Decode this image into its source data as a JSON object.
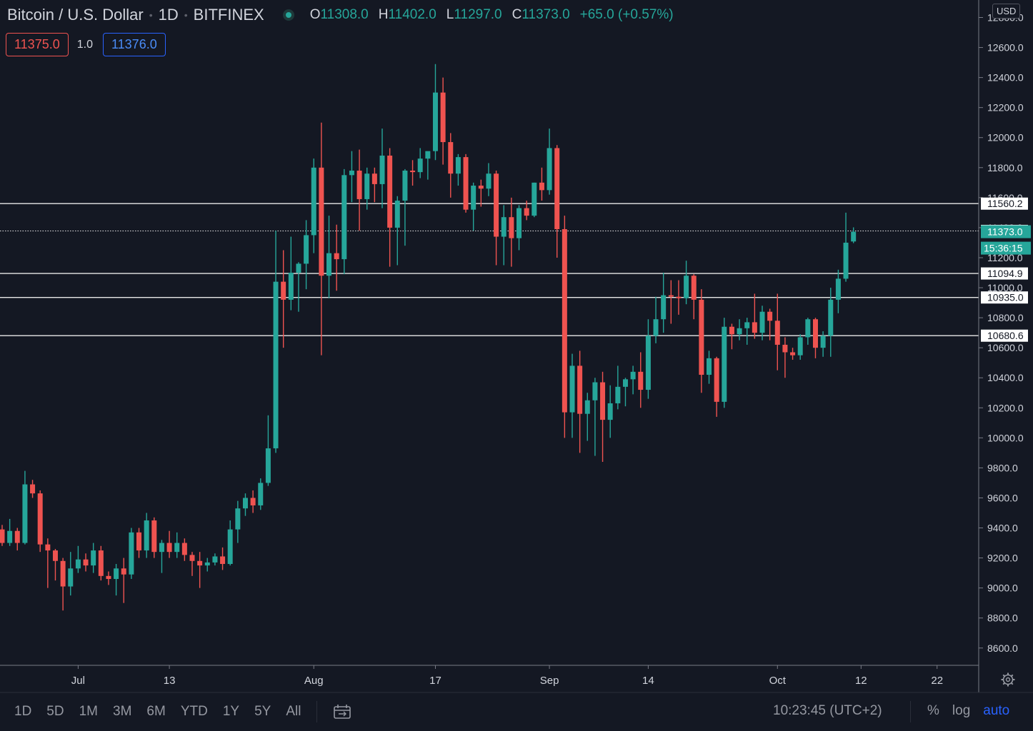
{
  "header": {
    "symbol": "Bitcoin / U.S. Dollar",
    "interval": "1D",
    "exchange": "BITFINEX",
    "ohlc": [
      {
        "label": "O",
        "value": "11308.0"
      },
      {
        "label": "H",
        "value": "11402.0"
      },
      {
        "label": "L",
        "value": "11297.0"
      },
      {
        "label": "C",
        "value": "11373.0"
      }
    ],
    "change": "+65.0 (+0.57%)"
  },
  "quote": {
    "sell": "11375.0",
    "spread": "1.0",
    "buy": "11376.0"
  },
  "currency": "USD",
  "colors": {
    "up": "#26a69a",
    "down": "#ef5350",
    "background": "#141823",
    "accent": "#2962ff",
    "text": "#d1d4dc"
  },
  "chart_data": {
    "type": "candlestick",
    "ylim": [
      8450,
      12850
    ],
    "y_ticks": [
      8600,
      8800,
      9000,
      9200,
      9400,
      9600,
      9800,
      10000,
      10200,
      10400,
      10600,
      10800,
      11000,
      11200,
      11400,
      11600,
      11800,
      12000,
      12200,
      12400,
      12600,
      12800
    ],
    "y_tick_labels": [
      "8600.0",
      "8800.0",
      "9000.0",
      "9200.0",
      "9400.0",
      "9600.0",
      "9800.0",
      "10000.0",
      "10200.0",
      "10400.0",
      "10600.0",
      "10800.0",
      "11000.0",
      "11200.0",
      "11400.0",
      "11600.0",
      "11800.0",
      "12000.0",
      "12200.0",
      "12400.0",
      "12600.0",
      "12800.0"
    ],
    "x_start": "2020-06-21",
    "x_labels": [
      {
        "date": "2020-07-01",
        "label": "Jul"
      },
      {
        "date": "2020-07-13",
        "label": "13"
      },
      {
        "date": "2020-08-01",
        "label": "Aug"
      },
      {
        "date": "2020-08-17",
        "label": "17"
      },
      {
        "date": "2020-09-01",
        "label": "Sep"
      },
      {
        "date": "2020-09-14",
        "label": "14"
      },
      {
        "date": "2020-10-01",
        "label": "Oct"
      },
      {
        "date": "2020-10-12",
        "label": "12"
      },
      {
        "date": "2020-10-22",
        "label": "22"
      }
    ],
    "candles": [
      {
        "date": "2020-06-21",
        "o": 9390,
        "h": 9420,
        "l": 9280,
        "c": 9300
      },
      {
        "date": "2020-06-22",
        "o": 9300,
        "h": 9460,
        "l": 9280,
        "c": 9380
      },
      {
        "date": "2020-06-23",
        "o": 9380,
        "h": 9400,
        "l": 9250,
        "c": 9300
      },
      {
        "date": "2020-06-24",
        "o": 9300,
        "h": 9780,
        "l": 9290,
        "c": 9690
      },
      {
        "date": "2020-06-25",
        "o": 9690,
        "h": 9720,
        "l": 9600,
        "c": 9630
      },
      {
        "date": "2020-06-26",
        "o": 9630,
        "h": 9650,
        "l": 9240,
        "c": 9290
      },
      {
        "date": "2020-06-27",
        "o": 9290,
        "h": 9330,
        "l": 9000,
        "c": 9250
      },
      {
        "date": "2020-06-28",
        "o": 9250,
        "h": 9260,
        "l": 9050,
        "c": 9180
      },
      {
        "date": "2020-06-29",
        "o": 9180,
        "h": 9200,
        "l": 8850,
        "c": 9010
      },
      {
        "date": "2020-06-30",
        "o": 9010,
        "h": 9240,
        "l": 8950,
        "c": 9130
      },
      {
        "date": "2020-07-01",
        "o": 9130,
        "h": 9280,
        "l": 9100,
        "c": 9190
      },
      {
        "date": "2020-07-02",
        "o": 9190,
        "h": 9230,
        "l": 9110,
        "c": 9150
      },
      {
        "date": "2020-07-03",
        "o": 9150,
        "h": 9300,
        "l": 9100,
        "c": 9250
      },
      {
        "date": "2020-07-04",
        "o": 9250,
        "h": 9280,
        "l": 9050,
        "c": 9080
      },
      {
        "date": "2020-07-05",
        "o": 9080,
        "h": 9110,
        "l": 9020,
        "c": 9060
      },
      {
        "date": "2020-07-06",
        "o": 9060,
        "h": 9160,
        "l": 8950,
        "c": 9130
      },
      {
        "date": "2020-07-07",
        "o": 9130,
        "h": 9200,
        "l": 8900,
        "c": 9090
      },
      {
        "date": "2020-07-08",
        "o": 9090,
        "h": 9400,
        "l": 9060,
        "c": 9370
      },
      {
        "date": "2020-07-09",
        "o": 9370,
        "h": 9400,
        "l": 9200,
        "c": 9250
      },
      {
        "date": "2020-07-10",
        "o": 9250,
        "h": 9500,
        "l": 9200,
        "c": 9450
      },
      {
        "date": "2020-07-11",
        "o": 9450,
        "h": 9470,
        "l": 9200,
        "c": 9240
      },
      {
        "date": "2020-07-12",
        "o": 9240,
        "h": 9320,
        "l": 9100,
        "c": 9300
      },
      {
        "date": "2020-07-13",
        "o": 9300,
        "h": 9380,
        "l": 9200,
        "c": 9240
      },
      {
        "date": "2020-07-14",
        "o": 9240,
        "h": 9370,
        "l": 9200,
        "c": 9300
      },
      {
        "date": "2020-07-15",
        "o": 9300,
        "h": 9330,
        "l": 9180,
        "c": 9220
      },
      {
        "date": "2020-07-16",
        "o": 9220,
        "h": 9240,
        "l": 9080,
        "c": 9180
      },
      {
        "date": "2020-07-17",
        "o": 9180,
        "h": 9240,
        "l": 9000,
        "c": 9150
      },
      {
        "date": "2020-07-18",
        "o": 9150,
        "h": 9200,
        "l": 9110,
        "c": 9170
      },
      {
        "date": "2020-07-19",
        "o": 9170,
        "h": 9230,
        "l": 9150,
        "c": 9210
      },
      {
        "date": "2020-07-20",
        "o": 9210,
        "h": 9270,
        "l": 9120,
        "c": 9160
      },
      {
        "date": "2020-07-21",
        "o": 9160,
        "h": 9450,
        "l": 9150,
        "c": 9390
      },
      {
        "date": "2020-07-22",
        "o": 9390,
        "h": 9580,
        "l": 9300,
        "c": 9530
      },
      {
        "date": "2020-07-23",
        "o": 9530,
        "h": 9630,
        "l": 9480,
        "c": 9600
      },
      {
        "date": "2020-07-24",
        "o": 9600,
        "h": 9650,
        "l": 9500,
        "c": 9550
      },
      {
        "date": "2020-07-25",
        "o": 9550,
        "h": 9730,
        "l": 9520,
        "c": 9700
      },
      {
        "date": "2020-07-26",
        "o": 9700,
        "h": 10150,
        "l": 9680,
        "c": 9930
      },
      {
        "date": "2020-07-27",
        "o": 9930,
        "h": 11380,
        "l": 9900,
        "c": 11040
      },
      {
        "date": "2020-07-28",
        "o": 11040,
        "h": 11250,
        "l": 10600,
        "c": 10920
      },
      {
        "date": "2020-07-29",
        "o": 10920,
        "h": 11340,
        "l": 10850,
        "c": 11100
      },
      {
        "date": "2020-07-30",
        "o": 11100,
        "h": 11170,
        "l": 10840,
        "c": 11160
      },
      {
        "date": "2020-07-31",
        "o": 11160,
        "h": 11450,
        "l": 10990,
        "c": 11350
      },
      {
        "date": "2020-08-01",
        "o": 11350,
        "h": 11860,
        "l": 11230,
        "c": 11800
      },
      {
        "date": "2020-08-02",
        "o": 11800,
        "h": 12100,
        "l": 10550,
        "c": 11080
      },
      {
        "date": "2020-08-03",
        "o": 11080,
        "h": 11480,
        "l": 10930,
        "c": 11230
      },
      {
        "date": "2020-08-04",
        "o": 11230,
        "h": 11420,
        "l": 10980,
        "c": 11190
      },
      {
        "date": "2020-08-05",
        "o": 11190,
        "h": 11790,
        "l": 11090,
        "c": 11750
      },
      {
        "date": "2020-08-06",
        "o": 11750,
        "h": 11910,
        "l": 11570,
        "c": 11780
      },
      {
        "date": "2020-08-07",
        "o": 11780,
        "h": 11920,
        "l": 11380,
        "c": 11590
      },
      {
        "date": "2020-08-08",
        "o": 11590,
        "h": 11800,
        "l": 11520,
        "c": 11760
      },
      {
        "date": "2020-08-09",
        "o": 11760,
        "h": 11800,
        "l": 11570,
        "c": 11690
      },
      {
        "date": "2020-08-10",
        "o": 11690,
        "h": 12060,
        "l": 11530,
        "c": 11880
      },
      {
        "date": "2020-08-11",
        "o": 11880,
        "h": 11930,
        "l": 11140,
        "c": 11400
      },
      {
        "date": "2020-08-12",
        "o": 11400,
        "h": 11610,
        "l": 11150,
        "c": 11580
      },
      {
        "date": "2020-08-13",
        "o": 11580,
        "h": 11790,
        "l": 11280,
        "c": 11780
      },
      {
        "date": "2020-08-14",
        "o": 11780,
        "h": 11850,
        "l": 11680,
        "c": 11770
      },
      {
        "date": "2020-08-15",
        "o": 11770,
        "h": 11930,
        "l": 11730,
        "c": 11860
      },
      {
        "date": "2020-08-16",
        "o": 11860,
        "h": 11900,
        "l": 11720,
        "c": 11910
      },
      {
        "date": "2020-08-17",
        "o": 11910,
        "h": 12490,
        "l": 11850,
        "c": 12300
      },
      {
        "date": "2020-08-18",
        "o": 12300,
        "h": 12400,
        "l": 11820,
        "c": 11970
      },
      {
        "date": "2020-08-19",
        "o": 11970,
        "h": 12030,
        "l": 11600,
        "c": 11760
      },
      {
        "date": "2020-08-20",
        "o": 11760,
        "h": 11890,
        "l": 11680,
        "c": 11870
      },
      {
        "date": "2020-08-21",
        "o": 11870,
        "h": 11890,
        "l": 11500,
        "c": 11520
      },
      {
        "date": "2020-08-22",
        "o": 11520,
        "h": 11700,
        "l": 11380,
        "c": 11680
      },
      {
        "date": "2020-08-23",
        "o": 11680,
        "h": 11720,
        "l": 11540,
        "c": 11660
      },
      {
        "date": "2020-08-24",
        "o": 11660,
        "h": 11830,
        "l": 11610,
        "c": 11760
      },
      {
        "date": "2020-08-25",
        "o": 11760,
        "h": 11780,
        "l": 11150,
        "c": 11340
      },
      {
        "date": "2020-08-26",
        "o": 11340,
        "h": 11550,
        "l": 11150,
        "c": 11470
      },
      {
        "date": "2020-08-27",
        "o": 11470,
        "h": 11600,
        "l": 11140,
        "c": 11330
      },
      {
        "date": "2020-08-28",
        "o": 11330,
        "h": 11550,
        "l": 11250,
        "c": 11530
      },
      {
        "date": "2020-08-29",
        "o": 11530,
        "h": 11580,
        "l": 11450,
        "c": 11480
      },
      {
        "date": "2020-08-30",
        "o": 11480,
        "h": 11700,
        "l": 11470,
        "c": 11700
      },
      {
        "date": "2020-08-31",
        "o": 11700,
        "h": 11800,
        "l": 11580,
        "c": 11650
      },
      {
        "date": "2020-09-01",
        "o": 11650,
        "h": 12060,
        "l": 11620,
        "c": 11930
      },
      {
        "date": "2020-09-02",
        "o": 11930,
        "h": 11950,
        "l": 11200,
        "c": 11390
      },
      {
        "date": "2020-09-03",
        "o": 11390,
        "h": 11480,
        "l": 10000,
        "c": 10170
      },
      {
        "date": "2020-09-04",
        "o": 10170,
        "h": 10560,
        "l": 10000,
        "c": 10480
      },
      {
        "date": "2020-09-05",
        "o": 10480,
        "h": 10580,
        "l": 9900,
        "c": 10160
      },
      {
        "date": "2020-09-06",
        "o": 10160,
        "h": 10300,
        "l": 9980,
        "c": 10250
      },
      {
        "date": "2020-09-07",
        "o": 10250,
        "h": 10400,
        "l": 9880,
        "c": 10370
      },
      {
        "date": "2020-09-08",
        "o": 10370,
        "h": 10440,
        "l": 9840,
        "c": 10120
      },
      {
        "date": "2020-09-09",
        "o": 10120,
        "h": 10350,
        "l": 10000,
        "c": 10230
      },
      {
        "date": "2020-09-10",
        "o": 10230,
        "h": 10480,
        "l": 10190,
        "c": 10340
      },
      {
        "date": "2020-09-11",
        "o": 10340,
        "h": 10400,
        "l": 10210,
        "c": 10390
      },
      {
        "date": "2020-09-12",
        "o": 10390,
        "h": 10480,
        "l": 10290,
        "c": 10440
      },
      {
        "date": "2020-09-13",
        "o": 10440,
        "h": 10570,
        "l": 10200,
        "c": 10320
      },
      {
        "date": "2020-09-14",
        "o": 10320,
        "h": 10790,
        "l": 10260,
        "c": 10680
      },
      {
        "date": "2020-09-15",
        "o": 10680,
        "h": 10940,
        "l": 10630,
        "c": 10790
      },
      {
        "date": "2020-09-16",
        "o": 10790,
        "h": 11100,
        "l": 10700,
        "c": 10950
      },
      {
        "date": "2020-09-17",
        "o": 10950,
        "h": 11050,
        "l": 10760,
        "c": 10940
      },
      {
        "date": "2020-09-18",
        "o": 10940,
        "h": 11050,
        "l": 10820,
        "c": 10930
      },
      {
        "date": "2020-09-19",
        "o": 10930,
        "h": 11180,
        "l": 10890,
        "c": 11080
      },
      {
        "date": "2020-09-20",
        "o": 11080,
        "h": 11090,
        "l": 10790,
        "c": 10920
      },
      {
        "date": "2020-09-21",
        "o": 10920,
        "h": 10990,
        "l": 10300,
        "c": 10420
      },
      {
        "date": "2020-09-22",
        "o": 10420,
        "h": 10580,
        "l": 10360,
        "c": 10530
      },
      {
        "date": "2020-09-23",
        "o": 10530,
        "h": 10540,
        "l": 10140,
        "c": 10240
      },
      {
        "date": "2020-09-24",
        "o": 10240,
        "h": 10800,
        "l": 10200,
        "c": 10740
      },
      {
        "date": "2020-09-25",
        "o": 10740,
        "h": 10760,
        "l": 10590,
        "c": 10690
      },
      {
        "date": "2020-09-26",
        "o": 10690,
        "h": 10790,
        "l": 10650,
        "c": 10730
      },
      {
        "date": "2020-09-27",
        "o": 10730,
        "h": 10800,
        "l": 10620,
        "c": 10770
      },
      {
        "date": "2020-09-28",
        "o": 10770,
        "h": 10960,
        "l": 10660,
        "c": 10700
      },
      {
        "date": "2020-09-29",
        "o": 10700,
        "h": 10880,
        "l": 10650,
        "c": 10840
      },
      {
        "date": "2020-09-30",
        "o": 10840,
        "h": 10860,
        "l": 10650,
        "c": 10780
      },
      {
        "date": "2020-10-01",
        "o": 10780,
        "h": 10960,
        "l": 10450,
        "c": 10620
      },
      {
        "date": "2020-10-02",
        "o": 10620,
        "h": 10670,
        "l": 10400,
        "c": 10570
      },
      {
        "date": "2020-10-03",
        "o": 10570,
        "h": 10600,
        "l": 10520,
        "c": 10550
      },
      {
        "date": "2020-10-04",
        "o": 10550,
        "h": 10690,
        "l": 10520,
        "c": 10670
      },
      {
        "date": "2020-10-05",
        "o": 10670,
        "h": 10800,
        "l": 10620,
        "c": 10790
      },
      {
        "date": "2020-10-06",
        "o": 10790,
        "h": 10800,
        "l": 10530,
        "c": 10600
      },
      {
        "date": "2020-10-07",
        "o": 10600,
        "h": 10710,
        "l": 10540,
        "c": 10680
      },
      {
        "date": "2020-10-08",
        "o": 10680,
        "h": 11000,
        "l": 10540,
        "c": 10920
      },
      {
        "date": "2020-10-09",
        "o": 10920,
        "h": 11120,
        "l": 10830,
        "c": 11060
      },
      {
        "date": "2020-10-10",
        "o": 11060,
        "h": 11500,
        "l": 11040,
        "c": 11300
      },
      {
        "date": "2020-10-11",
        "o": 11308,
        "h": 11402,
        "l": 11297,
        "c": 11373
      }
    ],
    "horizontal_lines": [
      {
        "price": 11560.2,
        "label": "11560.2",
        "style": "solid"
      },
      {
        "price": 11378.5,
        "label": "11378.5",
        "style": "dotted"
      },
      {
        "price": 11094.9,
        "label": "11094.9",
        "style": "solid"
      },
      {
        "price": 10935.0,
        "label": "10935.0",
        "style": "solid"
      },
      {
        "price": 10680.6,
        "label": "10680.6",
        "style": "solid"
      }
    ],
    "last_price": {
      "price": 11373.0,
      "label": "11373.0",
      "countdown": "15:36:15"
    }
  },
  "bottom_bar": {
    "timeframes": [
      "1D",
      "5D",
      "1M",
      "3M",
      "6M",
      "YTD",
      "1Y",
      "5Y",
      "All"
    ],
    "clock": "10:23:45 (UTC+2)",
    "scale_options": [
      {
        "label": "%",
        "active": false
      },
      {
        "label": "log",
        "active": false
      },
      {
        "label": "auto",
        "active": true
      }
    ]
  }
}
